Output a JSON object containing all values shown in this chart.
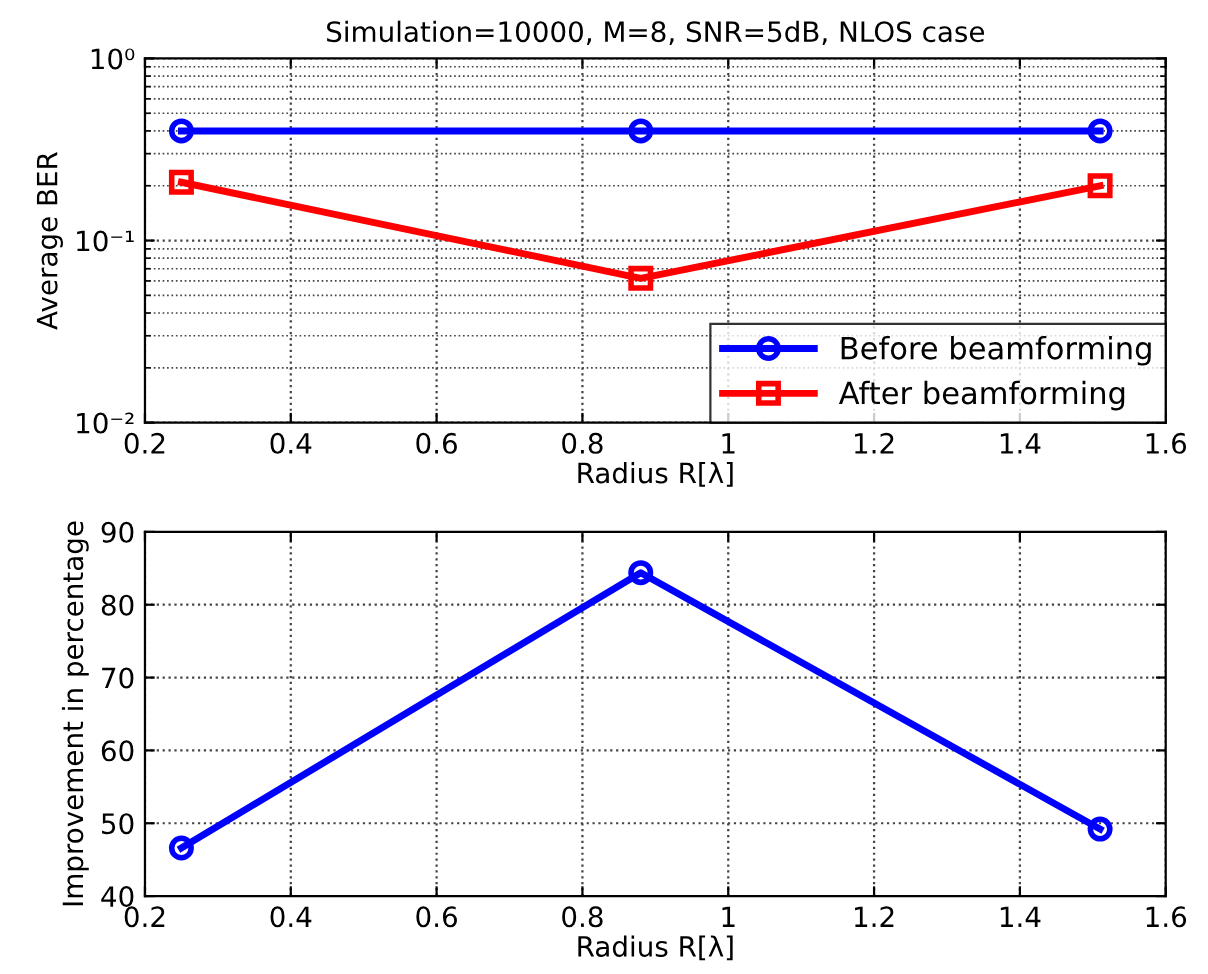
{
  "chart_data": [
    {
      "type": "line",
      "title": "Simulation=10000, M=8, SNR=5dB, NLOS case",
      "xlabel": "Radius R[λ]",
      "ylabel": "Average BER",
      "x": [
        0.25,
        0.88,
        1.51
      ],
      "series": [
        {
          "name": "Before beamforming",
          "color": "#0000ff",
          "values": [
            0.4,
            0.4,
            0.4
          ],
          "marker": "circle"
        },
        {
          "name": "After beamforming",
          "color": "#ff0000",
          "values": [
            0.209,
            0.062,
            0.2
          ],
          "marker": "square"
        }
      ],
      "log": "y",
      "xlim": [
        0.2,
        1.6
      ],
      "xticks": [
        0.2,
        0.4,
        0.6,
        0.8,
        1,
        1.2,
        1.4,
        1.6
      ],
      "ylim": [
        0.01,
        1
      ],
      "yticks": [
        {
          "value": 0.01,
          "label": "10⁻²"
        },
        {
          "value": 0.1,
          "label": "10⁻¹"
        },
        {
          "value": 1,
          "label": "10⁰"
        }
      ],
      "grid": true,
      "legend": "bottom right",
      "line_style": "solid"
    },
    {
      "type": "line",
      "xlabel": "Radius R[λ]",
      "ylabel": "Improvement in percentage",
      "x": [
        0.25,
        0.88,
        1.51
      ],
      "series": [
        {
          "color": "#0000ff",
          "values": [
            46.6,
            84.4,
            49.2
          ]
        }
      ],
      "marker": "circle",
      "xlim": [
        0.2,
        1.6
      ],
      "xticks": [
        0.2,
        0.4,
        0.6,
        0.8,
        1,
        1.2,
        1.4,
        1.6
      ],
      "ylim": [
        40,
        90
      ],
      "yticks": [
        40,
        50,
        60,
        70,
        80,
        90
      ],
      "grid": true,
      "line_style": "solid"
    }
  ]
}
